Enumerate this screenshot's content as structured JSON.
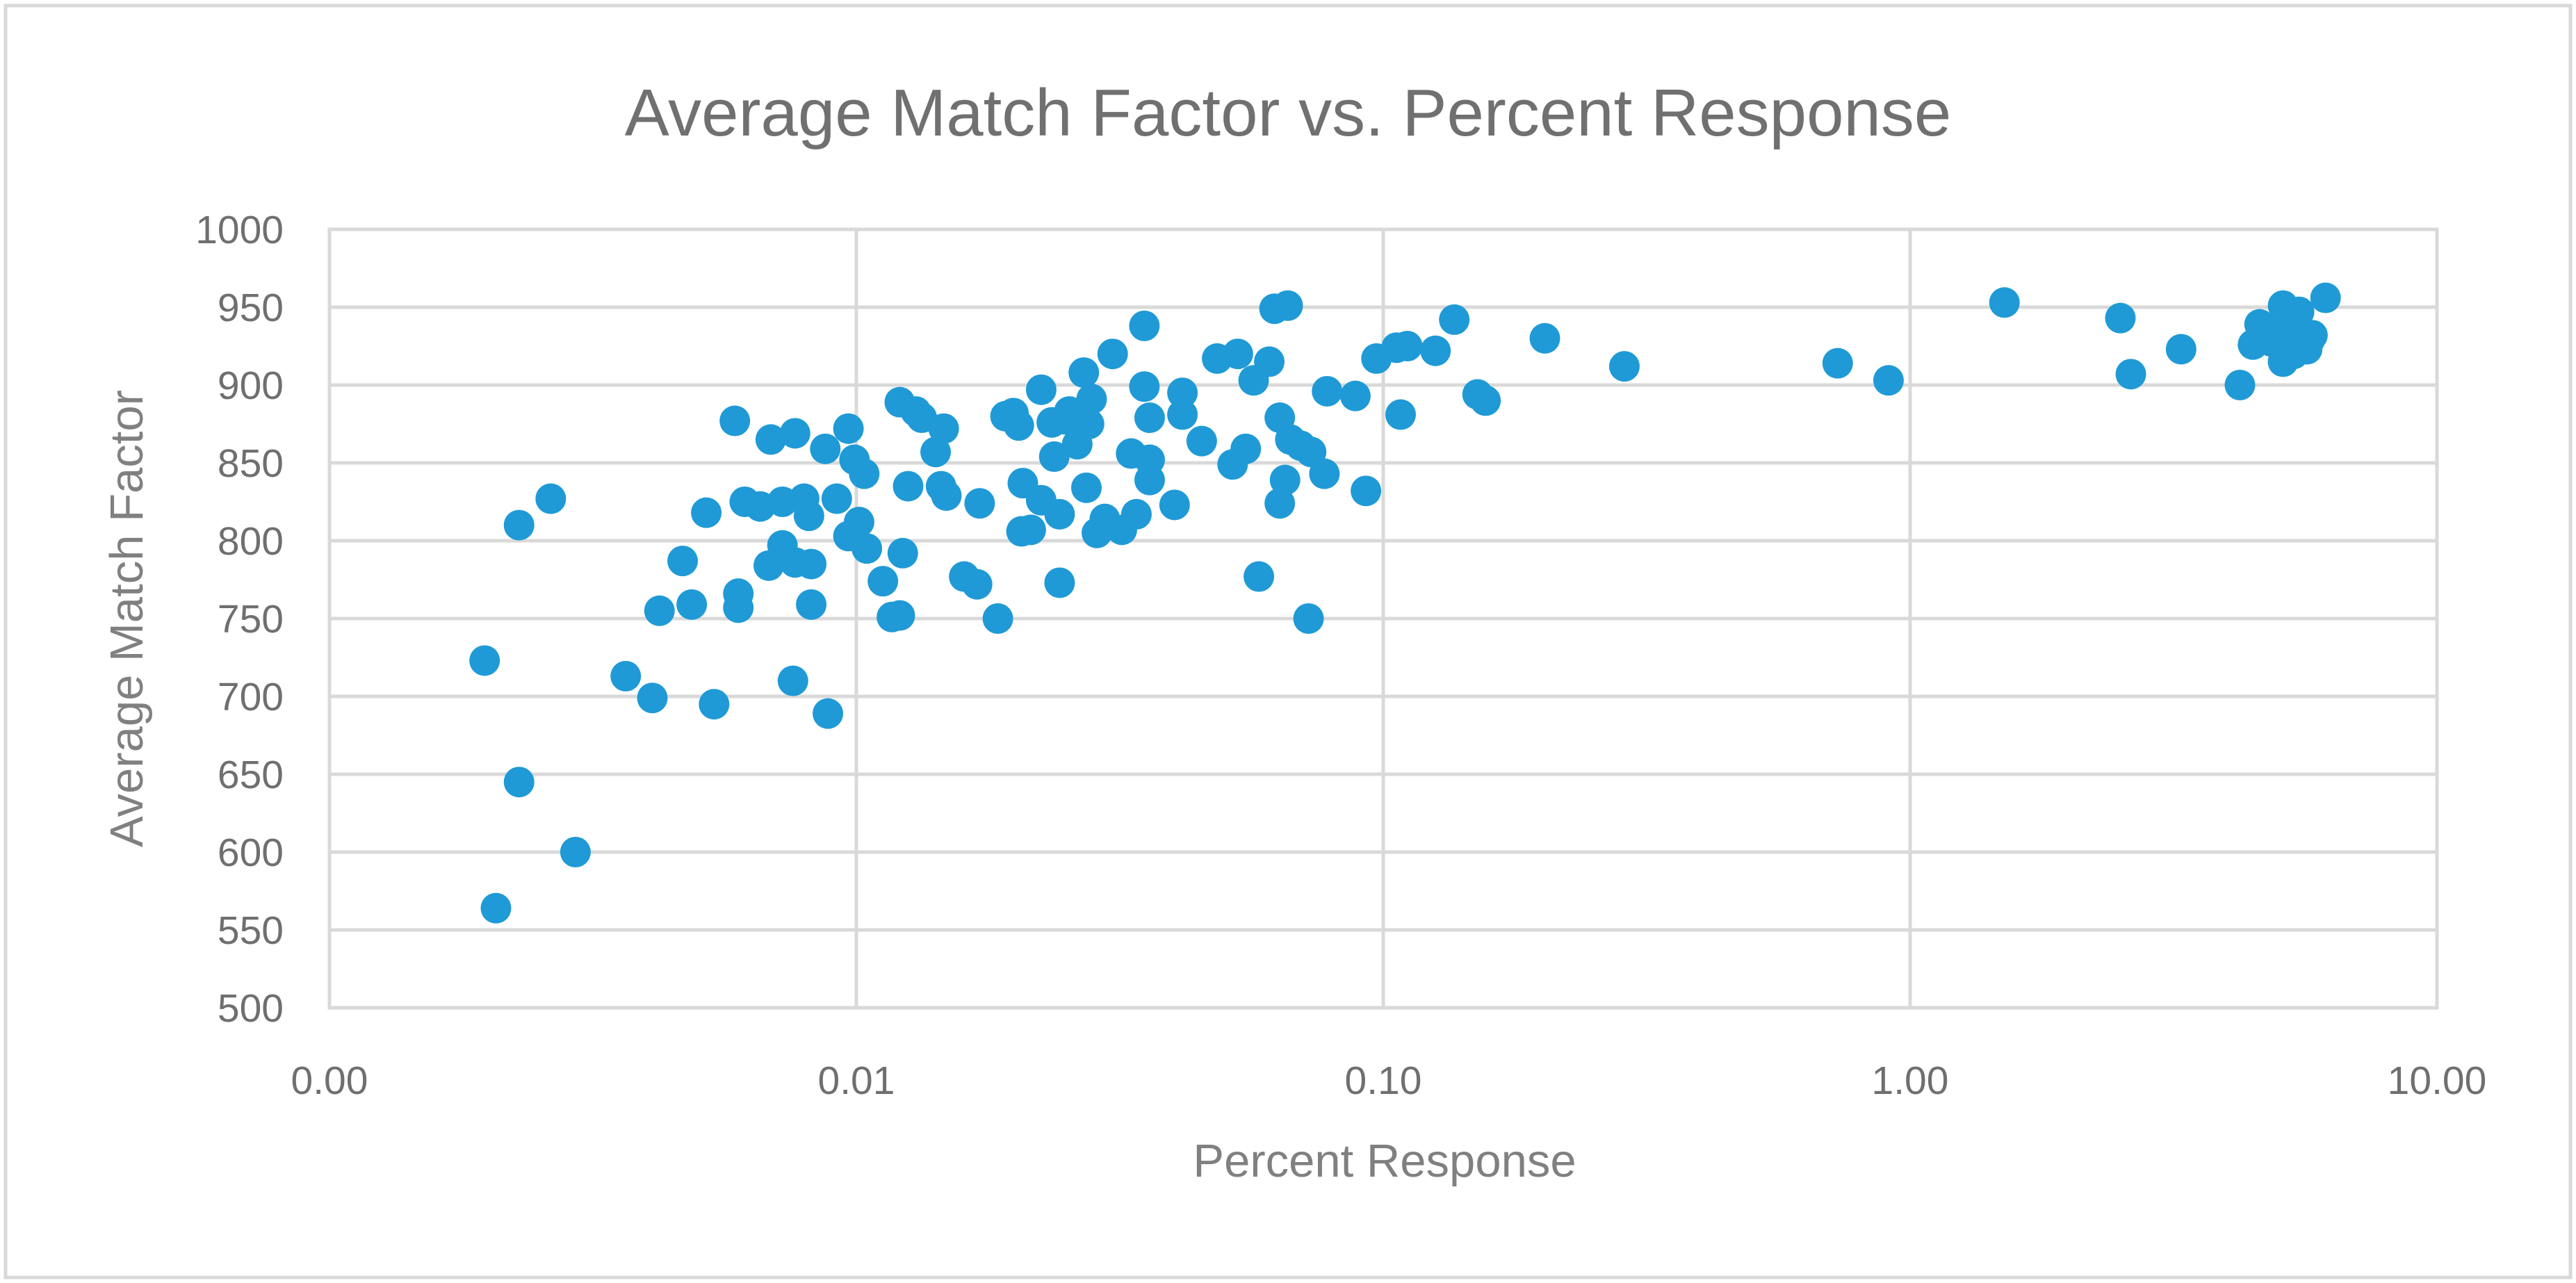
{
  "chart_data": {
    "type": "scatter",
    "title": "Average Match Factor vs. Percent Response",
    "xlabel": "Percent Response",
    "ylabel": "Average Match Factor",
    "x_scale": "log",
    "xlim": [
      0.001,
      10
    ],
    "ylim": [
      500,
      1000
    ],
    "x_ticks": [
      {
        "value": 0.001,
        "label": "0.00"
      },
      {
        "value": 0.01,
        "label": "0.01"
      },
      {
        "value": 0.1,
        "label": "0.10"
      },
      {
        "value": 1,
        "label": "1.00"
      },
      {
        "value": 10,
        "label": "10.00"
      }
    ],
    "y_ticks": [
      {
        "value": 500,
        "label": "500"
      },
      {
        "value": 550,
        "label": "550"
      },
      {
        "value": 600,
        "label": "600"
      },
      {
        "value": 650,
        "label": "650"
      },
      {
        "value": 700,
        "label": "700"
      },
      {
        "value": 750,
        "label": "750"
      },
      {
        "value": 800,
        "label": "800"
      },
      {
        "value": 850,
        "label": "850"
      },
      {
        "value": 900,
        "label": "900"
      },
      {
        "value": 950,
        "label": "950"
      },
      {
        "value": 1000,
        "label": "1000"
      }
    ],
    "grid": true,
    "legend": null,
    "marker_color": "#1f9ad6",
    "series": [
      {
        "name": "Average Match Factor",
        "points": [
          [
            0.00197,
            723
          ],
          [
            0.00207,
            564
          ],
          [
            0.00229,
            645
          ],
          [
            0.00229,
            810
          ],
          [
            0.00263,
            827
          ],
          [
            0.00293,
            600
          ],
          [
            0.00365,
            713
          ],
          [
            0.0041,
            699
          ],
          [
            0.00423,
            755
          ],
          [
            0.00468,
            787
          ],
          [
            0.00487,
            759
          ],
          [
            0.00519,
            818
          ],
          [
            0.00537,
            695
          ],
          [
            0.00588,
            877
          ],
          [
            0.00597,
            766
          ],
          [
            0.00597,
            757
          ],
          [
            0.00614,
            825
          ],
          [
            0.00657,
            822
          ],
          [
            0.00682,
            784
          ],
          [
            0.00688,
            865
          ],
          [
            0.00724,
            825
          ],
          [
            0.00724,
            797
          ],
          [
            0.00758,
            710
          ],
          [
            0.00765,
            869
          ],
          [
            0.00765,
            786
          ],
          [
            0.00796,
            827
          ],
          [
            0.00813,
            816
          ],
          [
            0.00821,
            785
          ],
          [
            0.00821,
            759
          ],
          [
            0.00873,
            859
          ],
          [
            0.00883,
            689
          ],
          [
            0.00918,
            827
          ],
          [
            0.00966,
            803
          ],
          [
            0.00966,
            872
          ],
          [
            0.00992,
            852
          ],
          [
            0.01012,
            812
          ],
          [
            0.01035,
            843
          ],
          [
            0.01047,
            795
          ],
          [
            0.01123,
            774
          ],
          [
            0.01168,
            751
          ],
          [
            0.01209,
            752
          ],
          [
            0.01209,
            889
          ],
          [
            0.01225,
            792
          ],
          [
            0.01254,
            835
          ],
          [
            0.01297,
            883
          ],
          [
            0.01331,
            879
          ],
          [
            0.01414,
            857
          ],
          [
            0.01448,
            835
          ],
          [
            0.01465,
            872
          ],
          [
            0.01482,
            829
          ],
          [
            0.01602,
            777
          ],
          [
            0.01695,
            772
          ],
          [
            0.01714,
            824
          ],
          [
            0.01856,
            750
          ],
          [
            0.01919,
            880
          ],
          [
            0.01987,
            882
          ],
          [
            0.02034,
            874
          ],
          [
            0.02058,
            806
          ],
          [
            0.0207,
            837
          ],
          [
            0.02143,
            807
          ],
          [
            0.02243,
            897
          ],
          [
            0.02243,
            826
          ],
          [
            0.02349,
            876
          ],
          [
            0.02375,
            854
          ],
          [
            0.02431,
            773
          ],
          [
            0.02431,
            817
          ],
          [
            0.02488,
            878
          ],
          [
            0.02536,
            883
          ],
          [
            0.02626,
            862
          ],
          [
            0.02702,
            908
          ],
          [
            0.02733,
            834
          ],
          [
            0.02765,
            875
          ],
          [
            0.02796,
            891
          ],
          [
            0.02861,
            805
          ],
          [
            0.02962,
            814
          ],
          [
            0.03065,
            920
          ],
          [
            0.03191,
            807
          ],
          [
            0.03323,
            856
          ],
          [
            0.03401,
            817
          ],
          [
            0.03521,
            938
          ],
          [
            0.03521,
            899
          ],
          [
            0.03603,
            879
          ],
          [
            0.03603,
            839
          ],
          [
            0.03603,
            852
          ],
          [
            0.04018,
            823
          ],
          [
            0.04158,
            895
          ],
          [
            0.04158,
            881
          ],
          [
            0.04524,
            864
          ],
          [
            0.04839,
            917
          ],
          [
            0.05178,
            849
          ],
          [
            0.05298,
            920
          ],
          [
            0.05484,
            859
          ],
          [
            0.05676,
            903
          ],
          [
            0.05807,
            777
          ],
          [
            0.06077,
            915
          ],
          [
            0.06218,
            949
          ],
          [
            0.06363,
            879
          ],
          [
            0.06363,
            824
          ],
          [
            0.06511,
            839
          ],
          [
            0.06587,
            951
          ],
          [
            0.06663,
            865
          ],
          [
            0.06972,
            861
          ],
          [
            0.07297,
            857
          ],
          [
            0.07215,
            750
          ],
          [
            0.07733,
            843
          ],
          [
            0.07824,
            896
          ],
          [
            0.08854,
            893
          ],
          [
            0.09272,
            832
          ],
          [
            0.09709,
            917
          ],
          [
            0.10598,
            924
          ],
          [
            0.10789,
            881
          ],
          [
            0.11108,
            925
          ],
          [
            0.12565,
            922
          ],
          [
            0.13641,
            942
          ],
          [
            0.15103,
            894
          ],
          [
            0.15637,
            890
          ],
          [
            0.20265,
            930
          ],
          [
            0.28689,
            912
          ],
          [
            0.72859,
            914
          ],
          [
            0.90997,
            903
          ],
          [
            1.51025,
            953
          ],
          [
            2.50648,
            943
          ],
          [
            2.6239,
            907
          ],
          [
            3.26856,
            923
          ],
          [
            4.22658,
            900
          ],
          [
            4.4748,
            926
          ],
          [
            4.6051,
            939
          ],
          [
            4.84889,
            928
          ],
          [
            4.9063,
            931
          ],
          [
            5.10269,
            951
          ],
          [
            5.10269,
            915
          ],
          [
            5.22298,
            945
          ],
          [
            5.28481,
            933
          ],
          [
            5.34738,
            920
          ],
          [
            5.47344,
            947
          ],
          [
            5.60247,
            928
          ],
          [
            5.66881,
            923
          ],
          [
            5.7359,
            929
          ],
          [
            5.80384,
            932
          ],
          [
            6.14497,
            956
          ]
        ]
      }
    ]
  }
}
